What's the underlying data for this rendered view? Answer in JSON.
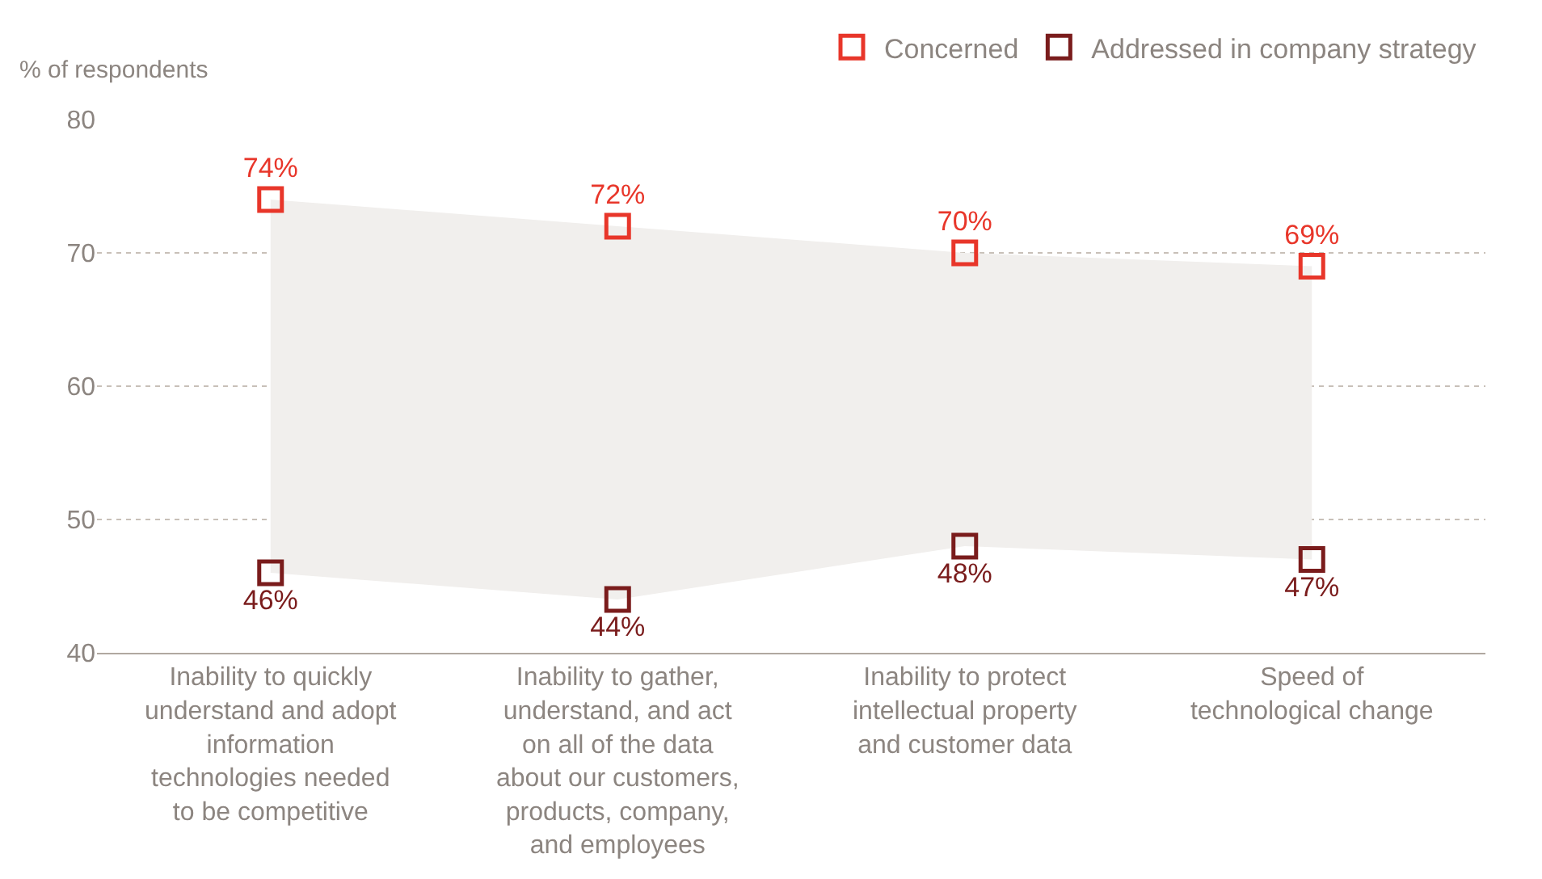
{
  "chart_data": {
    "type": "scatter",
    "ylabel": "% of respondents",
    "categories": [
      "Inability to quickly understand and adopt information technologies needed to be competitive",
      "Inability to gather, understand, and act on all of the data about our customers, products, company, and employees",
      "Inability to protect intellectual property and customer data",
      "Speed of technological change"
    ],
    "series": [
      {
        "name": "Concerned",
        "color": "#e8362a",
        "values": [
          74,
          72,
          70,
          69
        ],
        "value_labels": [
          "74%",
          "72%",
          "70%",
          "69%"
        ],
        "lower": [
          46,
          44,
          48,
          47
        ],
        "upper": [
          74,
          72,
          70,
          69
        ]
      },
      {
        "name": "Addressed in company strategy",
        "color": "#7a1c1c",
        "values": [
          46,
          44,
          48,
          47
        ],
        "value_labels": [
          "46%",
          "44%",
          "48%",
          "47%"
        ]
      }
    ],
    "ylim": [
      40,
      80
    ],
    "yticks": [
      40,
      50,
      60,
      70,
      80
    ],
    "grid": "y",
    "legend": "top right",
    "marker": "square"
  }
}
